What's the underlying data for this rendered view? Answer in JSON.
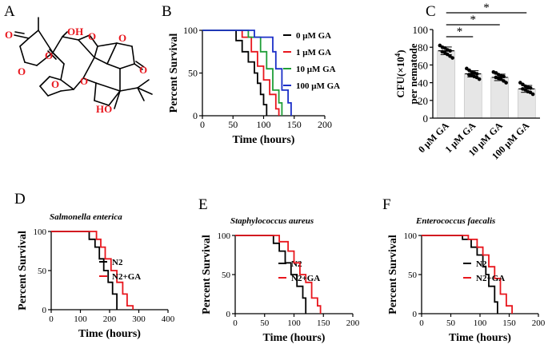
{
  "colors": {
    "black": "#000000",
    "red": "#e8161d",
    "green": "#1f9e37",
    "blue": "#1b2fc8",
    "bar": "#e6e6e6"
  },
  "panels": {
    "A": {
      "letter": "A",
      "atoms": {
        "oh": "OH",
        "ho": "HO",
        "o1": "O",
        "o2": "O",
        "o3": "O",
        "o4": "O",
        "o5": "O",
        "o6": "O",
        "o7": "O",
        "o8": "O"
      }
    },
    "B": {
      "letter": "B"
    },
    "C": {
      "letter": "C"
    },
    "D": {
      "letter": "D",
      "subtitle": "Salmonella enterica"
    },
    "E": {
      "letter": "E",
      "subtitle": "Staphylococcus aureus"
    },
    "F": {
      "letter": "F",
      "subtitle": "Enterococcus faecalis"
    }
  },
  "chart_data": [
    {
      "id": "B",
      "type": "line",
      "title": "",
      "xlabel": "Time (hours)",
      "ylabel": "Percent Survival",
      "xlim": [
        0,
        200
      ],
      "ylim": [
        0,
        100
      ],
      "xticks": [
        "0",
        "50",
        "100",
        "150",
        "200"
      ],
      "yticks": [
        "0",
        "50",
        "100"
      ],
      "legend_position": "right",
      "series": [
        {
          "name": "0 μM GA",
          "color": "#000000",
          "steps": [
            [
              0,
              100
            ],
            [
              55,
              100
            ],
            [
              55,
              88
            ],
            [
              65,
              88
            ],
            [
              65,
              75
            ],
            [
              75,
              75
            ],
            [
              75,
              63
            ],
            [
              85,
              63
            ],
            [
              85,
              50
            ],
            [
              90,
              50
            ],
            [
              90,
              38
            ],
            [
              95,
              38
            ],
            [
              95,
              25
            ],
            [
              100,
              25
            ],
            [
              100,
              13
            ],
            [
              105,
              13
            ],
            [
              105,
              0
            ]
          ]
        },
        {
          "name": "1 μM GA",
          "color": "#e8161d",
          "steps": [
            [
              0,
              100
            ],
            [
              65,
              100
            ],
            [
              65,
              92
            ],
            [
              80,
              92
            ],
            [
              80,
              75
            ],
            [
              90,
              75
            ],
            [
              90,
              58
            ],
            [
              100,
              58
            ],
            [
              100,
              42
            ],
            [
              110,
              42
            ],
            [
              110,
              25
            ],
            [
              120,
              25
            ],
            [
              120,
              8
            ],
            [
              125,
              8
            ],
            [
              125,
              0
            ]
          ]
        },
        {
          "name": "10 μM GA",
          "color": "#1f9e37",
          "steps": [
            [
              0,
              100
            ],
            [
              75,
              100
            ],
            [
              75,
              92
            ],
            [
              95,
              92
            ],
            [
              95,
              75
            ],
            [
              105,
              75
            ],
            [
              105,
              55
            ],
            [
              115,
              55
            ],
            [
              115,
              30
            ],
            [
              125,
              30
            ],
            [
              125,
              15
            ],
            [
              130,
              15
            ],
            [
              130,
              0
            ]
          ]
        },
        {
          "name": "100 μM GA",
          "color": "#1b2fc8",
          "steps": [
            [
              0,
              100
            ],
            [
              85,
              100
            ],
            [
              85,
              92
            ],
            [
              115,
              92
            ],
            [
              115,
              75
            ],
            [
              120,
              75
            ],
            [
              120,
              55
            ],
            [
              130,
              55
            ],
            [
              130,
              30
            ],
            [
              140,
              30
            ],
            [
              140,
              15
            ],
            [
              145,
              15
            ],
            [
              145,
              0
            ]
          ]
        }
      ]
    },
    {
      "id": "C",
      "type": "bar",
      "title": "",
      "xlabel": "",
      "ylabel_line1": "CFU(×10",
      "ylabel_sup": "4",
      "ylabel_close": ")",
      "ylabel_line2": "per nematode",
      "ylim": [
        0,
        100
      ],
      "yticks": [
        "0",
        "20",
        "40",
        "60",
        "80",
        "100"
      ],
      "categories": [
        "0 μM GA",
        "1 μM GA",
        "10 μM GA",
        "100 μM GA"
      ],
      "values": [
        76,
        50,
        46,
        33
      ],
      "points": [
        [
          82,
          80,
          79,
          77,
          76,
          75,
          74,
          72,
          70,
          68
        ],
        [
          56,
          54,
          52,
          51,
          50,
          49,
          48,
          47,
          46,
          44
        ],
        [
          52,
          51,
          49,
          48,
          47,
          46,
          45,
          44,
          42,
          40
        ],
        [
          40,
          38,
          36,
          35,
          34,
          33,
          32,
          30,
          29,
          27
        ]
      ],
      "significance": [
        {
          "from": 0,
          "to": 1,
          "label": "*"
        },
        {
          "from": 0,
          "to": 2,
          "label": "*"
        },
        {
          "from": 0,
          "to": 3,
          "label": "*"
        }
      ]
    },
    {
      "id": "D",
      "type": "line",
      "title": "Salmonella enterica",
      "xlabel": "Time (hours)",
      "ylabel": "Percent Survival",
      "xlim": [
        0,
        400
      ],
      "ylim": [
        0,
        100
      ],
      "xticks": [
        "0",
        "100",
        "200",
        "300",
        "400"
      ],
      "yticks": [
        "0",
        "50",
        "100"
      ],
      "legend_position": "right",
      "series": [
        {
          "name": "N2",
          "color": "#000000",
          "steps": [
            [
              0,
              100
            ],
            [
              130,
              100
            ],
            [
              130,
              90
            ],
            [
              150,
              90
            ],
            [
              150,
              80
            ],
            [
              165,
              80
            ],
            [
              165,
              65
            ],
            [
              180,
              65
            ],
            [
              180,
              50
            ],
            [
              195,
              50
            ],
            [
              195,
              35
            ],
            [
              210,
              35
            ],
            [
              210,
              20
            ],
            [
              225,
              20
            ],
            [
              225,
              0
            ]
          ]
        },
        {
          "name": "N2+GA",
          "color": "#e8161d",
          "steps": [
            [
              0,
              100
            ],
            [
              155,
              100
            ],
            [
              155,
              90
            ],
            [
              170,
              90
            ],
            [
              170,
              80
            ],
            [
              185,
              80
            ],
            [
              185,
              65
            ],
            [
              205,
              65
            ],
            [
              205,
              50
            ],
            [
              225,
              50
            ],
            [
              225,
              35
            ],
            [
              245,
              35
            ],
            [
              245,
              20
            ],
            [
              260,
              20
            ],
            [
              260,
              5
            ],
            [
              280,
              5
            ],
            [
              280,
              0
            ]
          ]
        }
      ]
    },
    {
      "id": "E",
      "type": "line",
      "title": "Staphylococcus aureus",
      "xlabel": "Time (hours)",
      "ylabel": "Percent Survival",
      "xlim": [
        0,
        200
      ],
      "ylim": [
        0,
        100
      ],
      "xticks": [
        "0",
        "50",
        "100",
        "150",
        "200"
      ],
      "yticks": [
        "0",
        "50",
        "100"
      ],
      "legend_position": "right",
      "series": [
        {
          "name": "N2",
          "color": "#000000",
          "steps": [
            [
              0,
              100
            ],
            [
              65,
              100
            ],
            [
              65,
              90
            ],
            [
              75,
              90
            ],
            [
              75,
              80
            ],
            [
              85,
              80
            ],
            [
              85,
              65
            ],
            [
              95,
              65
            ],
            [
              95,
              50
            ],
            [
              105,
              50
            ],
            [
              105,
              35
            ],
            [
              115,
              35
            ],
            [
              115,
              20
            ],
            [
              120,
              20
            ],
            [
              120,
              0
            ]
          ]
        },
        {
          "name": "N2+GA",
          "color": "#e8161d",
          "steps": [
            [
              0,
              100
            ],
            [
              75,
              100
            ],
            [
              75,
              92
            ],
            [
              90,
              92
            ],
            [
              90,
              80
            ],
            [
              100,
              80
            ],
            [
              100,
              65
            ],
            [
              110,
              65
            ],
            [
              110,
              50
            ],
            [
              120,
              50
            ],
            [
              120,
              40
            ],
            [
              130,
              40
            ],
            [
              130,
              20
            ],
            [
              140,
              20
            ],
            [
              140,
              10
            ],
            [
              145,
              10
            ],
            [
              145,
              0
            ]
          ]
        }
      ]
    },
    {
      "id": "F",
      "type": "line",
      "title": "Enterococcus faecalis",
      "xlabel": "Time (hours)",
      "ylabel": "Percent Survival",
      "xlim": [
        0,
        200
      ],
      "ylim": [
        0,
        100
      ],
      "xticks": [
        "0",
        "50",
        "100",
        "150",
        "200"
      ],
      "yticks": [
        "0",
        "50",
        "100"
      ],
      "legend_position": "right",
      "series": [
        {
          "name": "N2",
          "color": "#000000",
          "steps": [
            [
              0,
              100
            ],
            [
              70,
              100
            ],
            [
              70,
              95
            ],
            [
              85,
              95
            ],
            [
              85,
              85
            ],
            [
              95,
              85
            ],
            [
              95,
              75
            ],
            [
              105,
              75
            ],
            [
              105,
              60
            ],
            [
              110,
              60
            ],
            [
              110,
              50
            ],
            [
              115,
              50
            ],
            [
              115,
              35
            ],
            [
              125,
              35
            ],
            [
              125,
              15
            ],
            [
              130,
              15
            ],
            [
              130,
              0
            ]
          ]
        },
        {
          "name": "N2+GA",
          "color": "#e8161d",
          "steps": [
            [
              0,
              100
            ],
            [
              80,
              100
            ],
            [
              80,
              95
            ],
            [
              95,
              95
            ],
            [
              95,
              85
            ],
            [
              105,
              85
            ],
            [
              105,
              75
            ],
            [
              115,
              75
            ],
            [
              115,
              60
            ],
            [
              125,
              60
            ],
            [
              125,
              45
            ],
            [
              135,
              45
            ],
            [
              135,
              25
            ],
            [
              145,
              25
            ],
            [
              145,
              10
            ],
            [
              155,
              10
            ],
            [
              155,
              0
            ]
          ]
        }
      ]
    }
  ]
}
